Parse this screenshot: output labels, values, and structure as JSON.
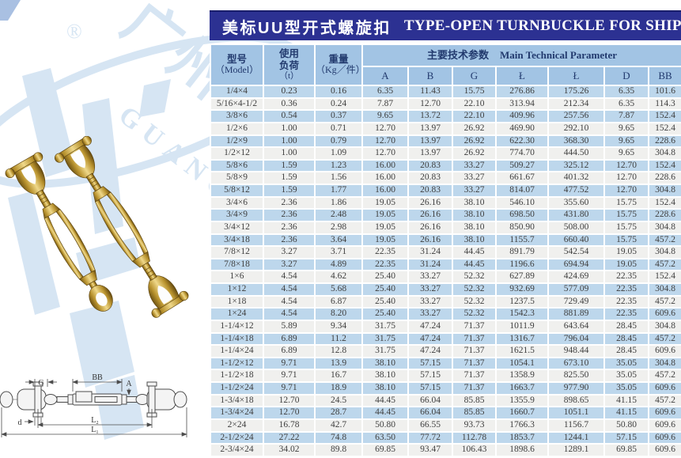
{
  "title": {
    "cn": "美标UU型开式螺旋扣",
    "en": "TYPE-OPEN TURNBUCKLE FOR SHIP"
  },
  "watermark": {
    "registered": "®",
    "cn": "广州",
    "en": "GUANGZHOU"
  },
  "colors": {
    "band": "#2c3192",
    "band_edge": "#181d6b",
    "header_bg": "#a2c4e4",
    "row_alt": "#bdd7ec",
    "row_plain": "#f0f0ee",
    "accent_text": "#223a6e",
    "data_text": "#3f3f3f",
    "watermark": "#d6e5f3"
  },
  "diagram": {
    "labels": {
      "g": "G",
      "bb": "BB",
      "a": "A",
      "d": "d",
      "l2": "L₂",
      "l1": "L₁"
    }
  },
  "table": {
    "model_header": {
      "line1": "型号",
      "line2": "（Model）"
    },
    "load_header": {
      "line1": "使用",
      "line2": "负荷",
      "line3": "（t）"
    },
    "weight_header": {
      "line1": "重量",
      "line2": "（Kg／件）"
    },
    "params_header": {
      "cn": "主要技术参数",
      "en": "Main Technical Parameter"
    },
    "param_cols": [
      "A",
      "B",
      "G",
      "Ł",
      "Ł",
      "D",
      "BB"
    ],
    "rows": [
      [
        "1/4×4",
        "0.23",
        "0.16",
        "6.35",
        "11.43",
        "15.75",
        "276.86",
        "175.26",
        "6.35",
        "101.6"
      ],
      [
        "5/16×4-1/2",
        "0.36",
        "0.24",
        "7.87",
        "12.70",
        "22.10",
        "313.94",
        "212.34",
        "6.35",
        "114.3"
      ],
      [
        "3/8×6",
        "0.54",
        "0.37",
        "9.65",
        "13.72",
        "22.10",
        "409.96",
        "257.56",
        "7.87",
        "152.4"
      ],
      [
        "1/2×6",
        "1.00",
        "0.71",
        "12.70",
        "13.97",
        "26.92",
        "469.90",
        "292.10",
        "9.65",
        "152.4"
      ],
      [
        "1/2×9",
        "1.00",
        "0.79",
        "12.70",
        "13.97",
        "26.92",
        "622.30",
        "368.30",
        "9.65",
        "228.6"
      ],
      [
        "1/2×12",
        "1.00",
        "1.09",
        "12.70",
        "13.97",
        "26.92",
        "774.70",
        "444.50",
        "9.65",
        "304.8"
      ],
      [
        "5/8×6",
        "1.59",
        "1.23",
        "16.00",
        "20.83",
        "33.27",
        "509.27",
        "325.12",
        "12.70",
        "152.4"
      ],
      [
        "5/8×9",
        "1.59",
        "1.56",
        "16.00",
        "20.83",
        "33.27",
        "661.67",
        "401.32",
        "12.70",
        "228.6"
      ],
      [
        "5/8×12",
        "1.59",
        "1.77",
        "16.00",
        "20.83",
        "33.27",
        "814.07",
        "477.52",
        "12.70",
        "304.8"
      ],
      [
        "3/4×6",
        "2.36",
        "1.86",
        "19.05",
        "26.16",
        "38.10",
        "546.10",
        "355.60",
        "15.75",
        "152.4"
      ],
      [
        "3/4×9",
        "2.36",
        "2.48",
        "19.05",
        "26.16",
        "38.10",
        "698.50",
        "431.80",
        "15.75",
        "228.6"
      ],
      [
        "3/4×12",
        "2.36",
        "2.98",
        "19.05",
        "26.16",
        "38.10",
        "850.90",
        "508.00",
        "15.75",
        "304.8"
      ],
      [
        "3/4×18",
        "2.36",
        "3.64",
        "19.05",
        "26.16",
        "38.10",
        "1155.7",
        "660.40",
        "15.75",
        "457.2"
      ],
      [
        "7/8×12",
        "3.27",
        "3.71",
        "22.35",
        "31.24",
        "44.45",
        "891.79",
        "542.54",
        "19.05",
        "304.8"
      ],
      [
        "7/8×18",
        "3.27",
        "4.89",
        "22.35",
        "31.24",
        "44.45",
        "1196.6",
        "694.94",
        "19.05",
        "457.2"
      ],
      [
        "1×6",
        "4.54",
        "4.62",
        "25.40",
        "33.27",
        "52.32",
        "627.89",
        "424.69",
        "22.35",
        "152.4"
      ],
      [
        "1×12",
        "4.54",
        "5.68",
        "25.40",
        "33.27",
        "52.32",
        "932.69",
        "577.09",
        "22.35",
        "304.8"
      ],
      [
        "1×18",
        "4.54",
        "6.87",
        "25.40",
        "33.27",
        "52.32",
        "1237.5",
        "729.49",
        "22.35",
        "457.2"
      ],
      [
        "1×24",
        "4.54",
        "8.20",
        "25.40",
        "33.27",
        "52.32",
        "1542.3",
        "881.89",
        "22.35",
        "609.6"
      ],
      [
        "1-1/4×12",
        "5.89",
        "9.34",
        "31.75",
        "47.24",
        "71.37",
        "1011.9",
        "643.64",
        "28.45",
        "304.8"
      ],
      [
        "1-1/4×18",
        "6.89",
        "11.2",
        "31.75",
        "47.24",
        "71.37",
        "1316.7",
        "796.04",
        "28.45",
        "457.2"
      ],
      [
        "1-1/4×24",
        "6.89",
        "12.8",
        "31.75",
        "47.24",
        "71.37",
        "1621.5",
        "948.44",
        "28.45",
        "609.6"
      ],
      [
        "1-1/2×12",
        "9.71",
        "13.9",
        "38.10",
        "57.15",
        "71.37",
        "1054.1",
        "673.10",
        "35.05",
        "304.8"
      ],
      [
        "1-1/2×18",
        "9.71",
        "16.7",
        "38.10",
        "57.15",
        "71.37",
        "1358.9",
        "825.50",
        "35.05",
        "457.2"
      ],
      [
        "1-1/2×24",
        "9.71",
        "18.9",
        "38.10",
        "57.15",
        "71.37",
        "1663.7",
        "977.90",
        "35.05",
        "609.6"
      ],
      [
        "1-3/4×18",
        "12.70",
        "24.5",
        "44.45",
        "66.04",
        "85.85",
        "1355.9",
        "898.65",
        "41.15",
        "457.2"
      ],
      [
        "1-3/4×24",
        "12.70",
        "28.7",
        "44.45",
        "66.04",
        "85.85",
        "1660.7",
        "1051.1",
        "41.15",
        "609.6"
      ],
      [
        "2×24",
        "16.78",
        "42.7",
        "50.80",
        "66.55",
        "93.73",
        "1766.3",
        "1156.7",
        "50.80",
        "609.6"
      ],
      [
        "2-1/2×24",
        "27.22",
        "74.8",
        "63.50",
        "77.72",
        "112.78",
        "1853.7",
        "1244.1",
        "57.15",
        "609.6"
      ],
      [
        "2-3/4×24",
        "34.02",
        "89.8",
        "69.85",
        "93.47",
        "106.43",
        "1898.6",
        "1289.1",
        "69.85",
        "609.6"
      ]
    ]
  }
}
